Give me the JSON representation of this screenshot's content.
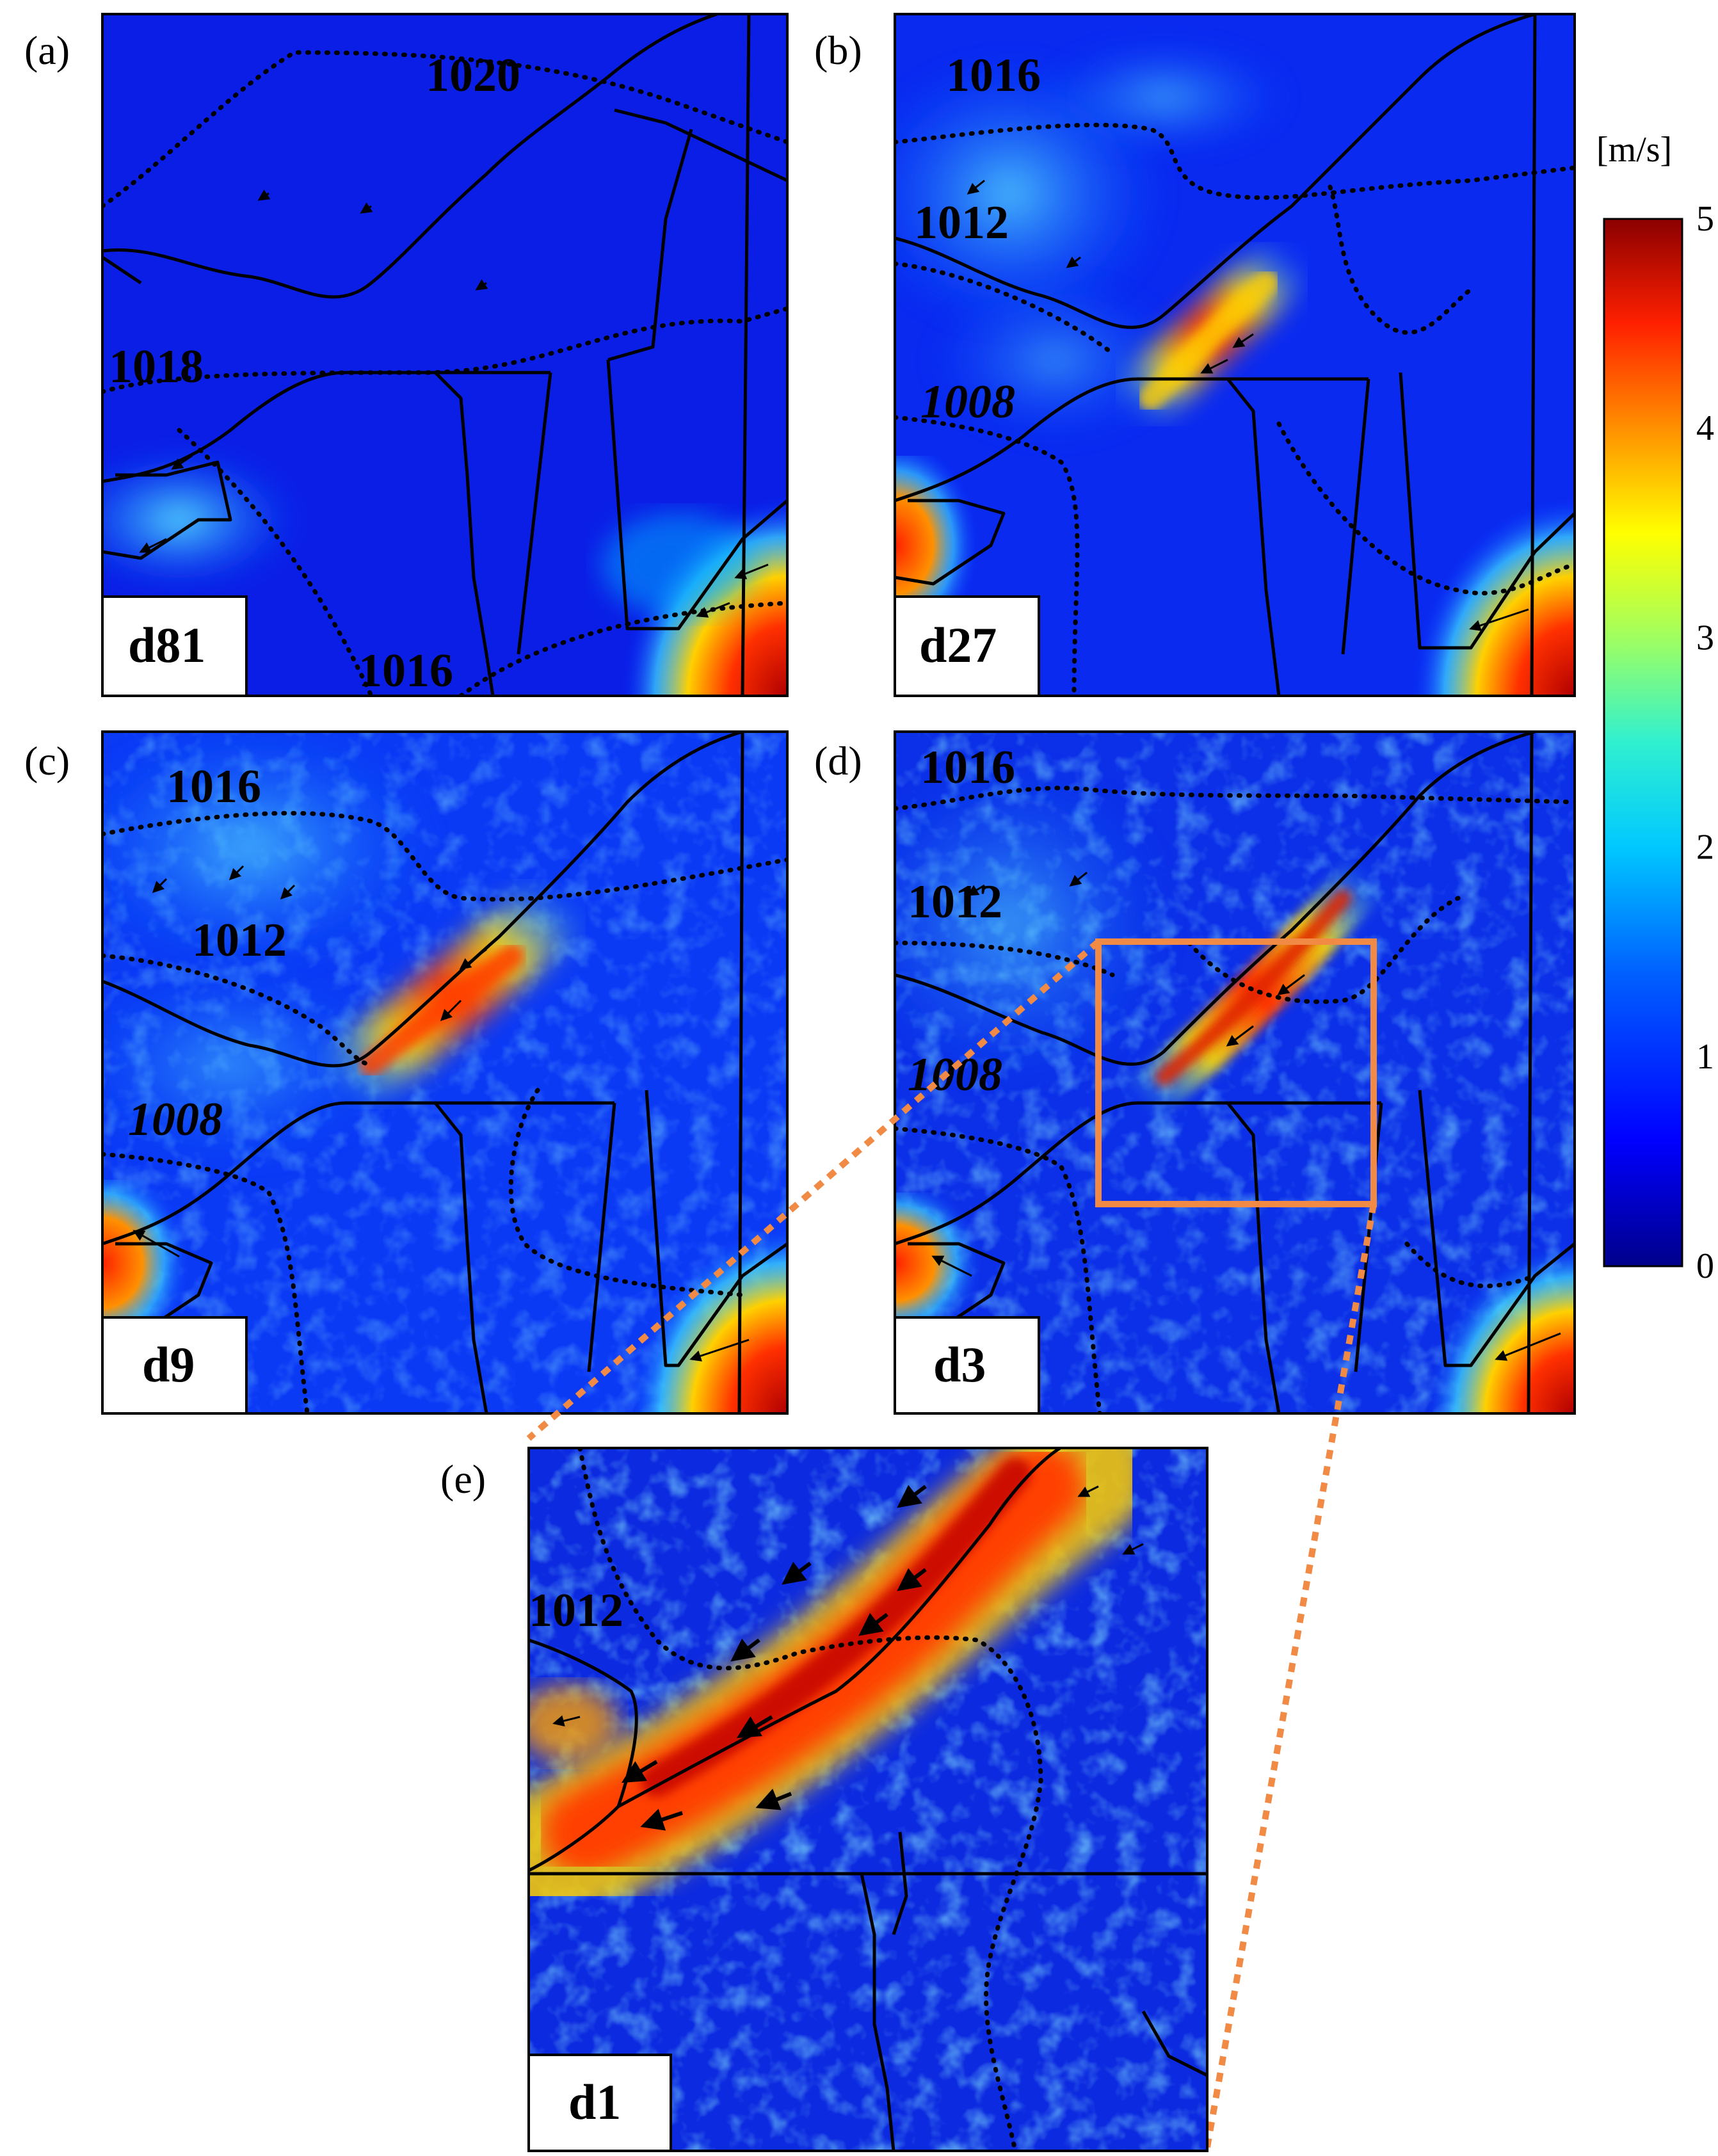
{
  "panels": [
    {
      "id": "a",
      "label": "(a)",
      "domain": "d81",
      "isobars": [
        "1020",
        "1018",
        "1016"
      ]
    },
    {
      "id": "b",
      "label": "(b)",
      "domain": "d27",
      "isobars": [
        "1016",
        "1012",
        "1008"
      ]
    },
    {
      "id": "c",
      "label": "(c)",
      "domain": "d9",
      "isobars": [
        "1016",
        "1012",
        "1008"
      ]
    },
    {
      "id": "d",
      "label": "(d)",
      "domain": "d3",
      "isobars": [
        "1016",
        "1012",
        "1008"
      ]
    },
    {
      "id": "e",
      "label": "(e)",
      "domain": "d1",
      "isobars": [
        "1012"
      ]
    }
  ],
  "colorbar": {
    "unit": "[m/s]",
    "ticks": [
      "5",
      "4",
      "3",
      "2",
      "1",
      "0"
    ],
    "colors": [
      "#00008B",
      "#0000FF",
      "#0080FF",
      "#00FFFF",
      "#80FF80",
      "#FFFF00",
      "#FF8000",
      "#FF0000",
      "#8B0000"
    ]
  },
  "zoom_box_color": "#F08A45"
}
